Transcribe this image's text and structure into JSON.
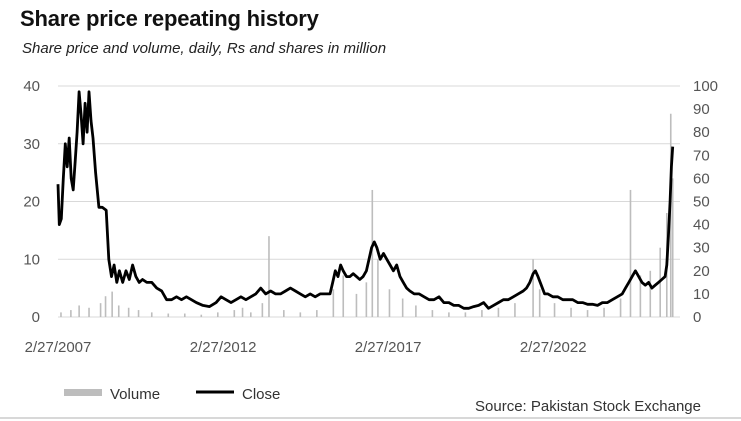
{
  "chart_data": {
    "type": "line",
    "title": "Share price repeating history",
    "subtitle": "Share price and volume, daily, Rs and shares in million",
    "source": "Source: Pakistan Stock Exchange",
    "x_ticks": [
      "2/27/2007",
      "2/27/2012",
      "2/27/2017",
      "2/27/2022"
    ],
    "x_range": [
      2007.16,
      2026.0
    ],
    "y_left": {
      "range": [
        0,
        40
      ],
      "ticks": [
        0,
        10,
        20,
        30,
        40
      ]
    },
    "y_right": {
      "range": [
        0,
        100
      ],
      "ticks": [
        0,
        10,
        20,
        30,
        40,
        50,
        60,
        70,
        80,
        90,
        100
      ]
    },
    "grid": true,
    "legend_position": "bottom-left",
    "series": [
      {
        "name": "Close",
        "axis": "left",
        "color": "#000000",
        "points": [
          [
            2007.16,
            23
          ],
          [
            2007.2,
            16
          ],
          [
            2007.26,
            17
          ],
          [
            2007.32,
            24
          ],
          [
            2007.38,
            30
          ],
          [
            2007.44,
            26
          ],
          [
            2007.5,
            31
          ],
          [
            2007.56,
            24
          ],
          [
            2007.62,
            22
          ],
          [
            2007.68,
            27
          ],
          [
            2007.74,
            32
          ],
          [
            2007.8,
            39
          ],
          [
            2007.86,
            35
          ],
          [
            2007.92,
            30
          ],
          [
            2007.98,
            37
          ],
          [
            2008.04,
            32
          ],
          [
            2008.1,
            39
          ],
          [
            2008.16,
            34
          ],
          [
            2008.22,
            31
          ],
          [
            2008.3,
            25
          ],
          [
            2008.4,
            19
          ],
          [
            2008.5,
            19
          ],
          [
            2008.62,
            18.5
          ],
          [
            2008.7,
            10
          ],
          [
            2008.78,
            7
          ],
          [
            2008.86,
            9
          ],
          [
            2008.94,
            6
          ],
          [
            2009.02,
            8
          ],
          [
            2009.12,
            6
          ],
          [
            2009.22,
            8
          ],
          [
            2009.32,
            6.5
          ],
          [
            2009.42,
            9
          ],
          [
            2009.52,
            7
          ],
          [
            2009.62,
            6
          ],
          [
            2009.72,
            6.5
          ],
          [
            2009.85,
            6
          ],
          [
            2010.0,
            6
          ],
          [
            2010.15,
            5
          ],
          [
            2010.3,
            4.5
          ],
          [
            2010.45,
            3
          ],
          [
            2010.6,
            3
          ],
          [
            2010.75,
            3.5
          ],
          [
            2010.9,
            3
          ],
          [
            2011.05,
            3.5
          ],
          [
            2011.2,
            3
          ],
          [
            2011.35,
            2.5
          ],
          [
            2011.55,
            2
          ],
          [
            2011.75,
            1.8
          ],
          [
            2011.95,
            2.5
          ],
          [
            2012.1,
            3.5
          ],
          [
            2012.25,
            3
          ],
          [
            2012.4,
            2.5
          ],
          [
            2012.55,
            3
          ],
          [
            2012.7,
            3.5
          ],
          [
            2012.85,
            3
          ],
          [
            2013.0,
            3.5
          ],
          [
            2013.15,
            4
          ],
          [
            2013.3,
            5
          ],
          [
            2013.45,
            4
          ],
          [
            2013.6,
            4.5
          ],
          [
            2013.75,
            4
          ],
          [
            2013.9,
            4
          ],
          [
            2014.05,
            4.5
          ],
          [
            2014.2,
            5
          ],
          [
            2014.35,
            4.5
          ],
          [
            2014.5,
            4
          ],
          [
            2014.65,
            3.5
          ],
          [
            2014.8,
            4
          ],
          [
            2014.95,
            3.5
          ],
          [
            2015.1,
            4
          ],
          [
            2015.25,
            4
          ],
          [
            2015.4,
            4
          ],
          [
            2015.48,
            6
          ],
          [
            2015.56,
            8
          ],
          [
            2015.64,
            7
          ],
          [
            2015.72,
            9
          ],
          [
            2015.8,
            8
          ],
          [
            2015.9,
            7
          ],
          [
            2016.0,
            7
          ],
          [
            2016.1,
            7.5
          ],
          [
            2016.2,
            7
          ],
          [
            2016.3,
            6.5
          ],
          [
            2016.4,
            7
          ],
          [
            2016.5,
            8
          ],
          [
            2016.58,
            10
          ],
          [
            2016.66,
            12
          ],
          [
            2016.74,
            13
          ],
          [
            2016.82,
            12
          ],
          [
            2016.92,
            10
          ],
          [
            2017.02,
            11
          ],
          [
            2017.12,
            10
          ],
          [
            2017.22,
            9
          ],
          [
            2017.32,
            8
          ],
          [
            2017.42,
            9
          ],
          [
            2017.52,
            7
          ],
          [
            2017.62,
            6
          ],
          [
            2017.72,
            5
          ],
          [
            2017.82,
            4.5
          ],
          [
            2017.95,
            4
          ],
          [
            2018.1,
            4
          ],
          [
            2018.25,
            3.5
          ],
          [
            2018.4,
            3
          ],
          [
            2018.55,
            3
          ],
          [
            2018.7,
            3.5
          ],
          [
            2018.85,
            2.5
          ],
          [
            2019.0,
            2.5
          ],
          [
            2019.15,
            2
          ],
          [
            2019.3,
            2
          ],
          [
            2019.45,
            1.5
          ],
          [
            2019.6,
            1.5
          ],
          [
            2019.75,
            1.8
          ],
          [
            2019.9,
            2
          ],
          [
            2020.05,
            2.5
          ],
          [
            2020.2,
            1.5
          ],
          [
            2020.35,
            2
          ],
          [
            2020.5,
            2.5
          ],
          [
            2020.65,
            3
          ],
          [
            2020.8,
            3
          ],
          [
            2020.95,
            3.5
          ],
          [
            2021.1,
            4
          ],
          [
            2021.25,
            4.5
          ],
          [
            2021.35,
            5
          ],
          [
            2021.45,
            6
          ],
          [
            2021.55,
            7.5
          ],
          [
            2021.62,
            8
          ],
          [
            2021.7,
            7
          ],
          [
            2021.8,
            5.5
          ],
          [
            2021.9,
            4
          ],
          [
            2022.0,
            4
          ],
          [
            2022.15,
            3.5
          ],
          [
            2022.3,
            3.5
          ],
          [
            2022.45,
            3
          ],
          [
            2022.6,
            3
          ],
          [
            2022.75,
            3
          ],
          [
            2022.9,
            2.5
          ],
          [
            2023.05,
            2.5
          ],
          [
            2023.2,
            2.2
          ],
          [
            2023.35,
            2.2
          ],
          [
            2023.5,
            2
          ],
          [
            2023.65,
            2.5
          ],
          [
            2023.8,
            2.5
          ],
          [
            2023.95,
            3
          ],
          [
            2024.1,
            3.5
          ],
          [
            2024.25,
            4
          ],
          [
            2024.35,
            5
          ],
          [
            2024.45,
            6
          ],
          [
            2024.55,
            7
          ],
          [
            2024.65,
            8
          ],
          [
            2024.75,
            7
          ],
          [
            2024.85,
            6
          ],
          [
            2024.95,
            5.5
          ],
          [
            2025.05,
            6
          ],
          [
            2025.15,
            5
          ],
          [
            2025.25,
            5.5
          ],
          [
            2025.35,
            6
          ],
          [
            2025.45,
            6.5
          ],
          [
            2025.55,
            7
          ],
          [
            2025.6,
            9
          ],
          [
            2025.65,
            14
          ],
          [
            2025.7,
            20
          ],
          [
            2025.74,
            26
          ],
          [
            2025.78,
            29.5
          ]
        ]
      },
      {
        "name": "Volume",
        "axis": "right",
        "color": "#bdbdbd",
        "points": [
          [
            2007.25,
            2
          ],
          [
            2007.55,
            3
          ],
          [
            2007.8,
            5
          ],
          [
            2008.1,
            4
          ],
          [
            2008.45,
            6
          ],
          [
            2008.6,
            9
          ],
          [
            2008.8,
            11
          ],
          [
            2009.0,
            5
          ],
          [
            2009.3,
            4
          ],
          [
            2009.6,
            3
          ],
          [
            2010.0,
            2
          ],
          [
            2010.5,
            1.5
          ],
          [
            2011.0,
            1.5
          ],
          [
            2011.5,
            1
          ],
          [
            2012.0,
            2
          ],
          [
            2012.5,
            3
          ],
          [
            2012.75,
            4
          ],
          [
            2013.0,
            2
          ],
          [
            2013.35,
            6
          ],
          [
            2013.55,
            35
          ],
          [
            2014.0,
            3
          ],
          [
            2014.5,
            2
          ],
          [
            2015.0,
            3
          ],
          [
            2015.5,
            12
          ],
          [
            2015.8,
            18
          ],
          [
            2016.2,
            10
          ],
          [
            2016.5,
            15
          ],
          [
            2016.68,
            55
          ],
          [
            2016.85,
            25
          ],
          [
            2017.2,
            12
          ],
          [
            2017.6,
            8
          ],
          [
            2018.0,
            5
          ],
          [
            2018.5,
            3
          ],
          [
            2019.0,
            2
          ],
          [
            2019.5,
            2
          ],
          [
            2020.0,
            3
          ],
          [
            2020.5,
            4
          ],
          [
            2021.0,
            6
          ],
          [
            2021.55,
            25
          ],
          [
            2021.75,
            12
          ],
          [
            2022.2,
            6
          ],
          [
            2022.7,
            4
          ],
          [
            2023.2,
            3
          ],
          [
            2023.7,
            4
          ],
          [
            2024.2,
            8
          ],
          [
            2024.5,
            55
          ],
          [
            2024.8,
            18
          ],
          [
            2025.1,
            20
          ],
          [
            2025.4,
            30
          ],
          [
            2025.6,
            45
          ],
          [
            2025.72,
            88
          ],
          [
            2025.78,
            60
          ]
        ]
      }
    ]
  },
  "legend": {
    "volume_label": "Volume",
    "close_label": "Close"
  },
  "colors": {
    "grid": "#d9d9d9",
    "close": "#000000",
    "volume": "#bdbdbd",
    "tick_text": "#555555"
  }
}
